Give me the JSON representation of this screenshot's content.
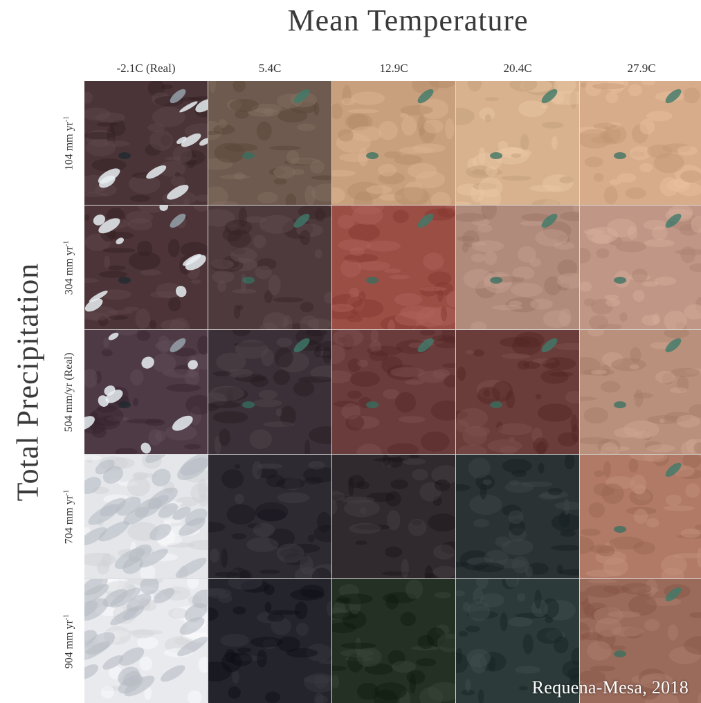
{
  "title": "Mean Temperature",
  "y_axis_label": "Total Precipitation",
  "credit": "Requena-Mesa, 2018",
  "columns": [
    "-2.1C (Real)",
    "5.4C",
    "12.9C",
    "20.4C",
    "27.9C"
  ],
  "rows": [
    {
      "text": "104 mm yr",
      "sup": "-1"
    },
    {
      "text": "304 mm yr",
      "sup": "-1"
    },
    {
      "text": "504 mm/yr (Real)",
      "sup": ""
    },
    {
      "text": "704 mm yr",
      "sup": "-1"
    },
    {
      "text": "904 mm yr",
      "sup": "-1"
    }
  ],
  "tiles": [
    [
      "#4a3438",
      "#6e5a4e",
      "#c8a07e",
      "#d8b28e",
      "#d6ac8a"
    ],
    [
      "#4c3438",
      "#4e3a3c",
      "#9a4e44",
      "#b08a7a",
      "#c09686"
    ],
    [
      "#4e3a44",
      "#3c3038",
      "#6a3c3c",
      "#6a3c3a",
      "#b8907c"
    ],
    [
      "#e4e6ea",
      "#2e2a32",
      "#302a2e",
      "#2a3234",
      "#b07a66"
    ],
    [
      "#e8eaee",
      "#24242c",
      "#243024",
      "#2c3a3a",
      "#9a6a5a"
    ]
  ],
  "tile_features": [
    [
      "snow",
      "lake",
      "lake",
      "lake",
      "lake"
    ],
    [
      "snow",
      "lake",
      "lake",
      "lake",
      "lake"
    ],
    [
      "snow",
      "lake",
      "lake",
      "lake",
      "lake"
    ],
    [
      "snowfield",
      "dark",
      "dark",
      "dark",
      "lake"
    ],
    [
      "snowfield",
      "dark",
      "dark",
      "dark",
      "lake"
    ]
  ],
  "colors": {
    "lake": "#3e7a6a",
    "snow": "#e8eef2"
  }
}
